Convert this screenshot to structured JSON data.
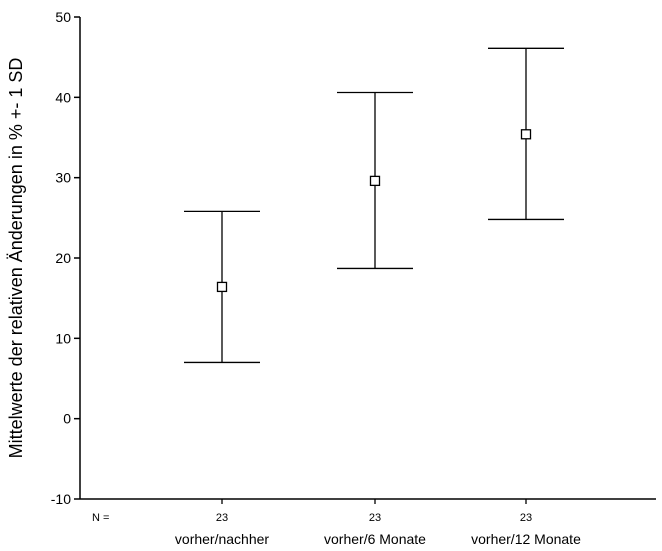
{
  "chart_data": {
    "type": "errorbar",
    "ylabel": "Mittelwerte der relativen Änderungen in % +- 1 SD",
    "xlabel": "",
    "ylim": [
      -10,
      50
    ],
    "yticks": [
      -10,
      0,
      10,
      20,
      30,
      40,
      50
    ],
    "grid": false,
    "n_label": "N =",
    "categories": [
      "vorher/nachher",
      "vorher/6 Monate",
      "vorher/12 Monate"
    ],
    "n": [
      "23",
      "23",
      "23"
    ],
    "mean": [
      16.4,
      29.6,
      35.4
    ],
    "lower": [
      7.0,
      18.7,
      24.8
    ],
    "upper": [
      25.8,
      40.6,
      46.1
    ]
  }
}
